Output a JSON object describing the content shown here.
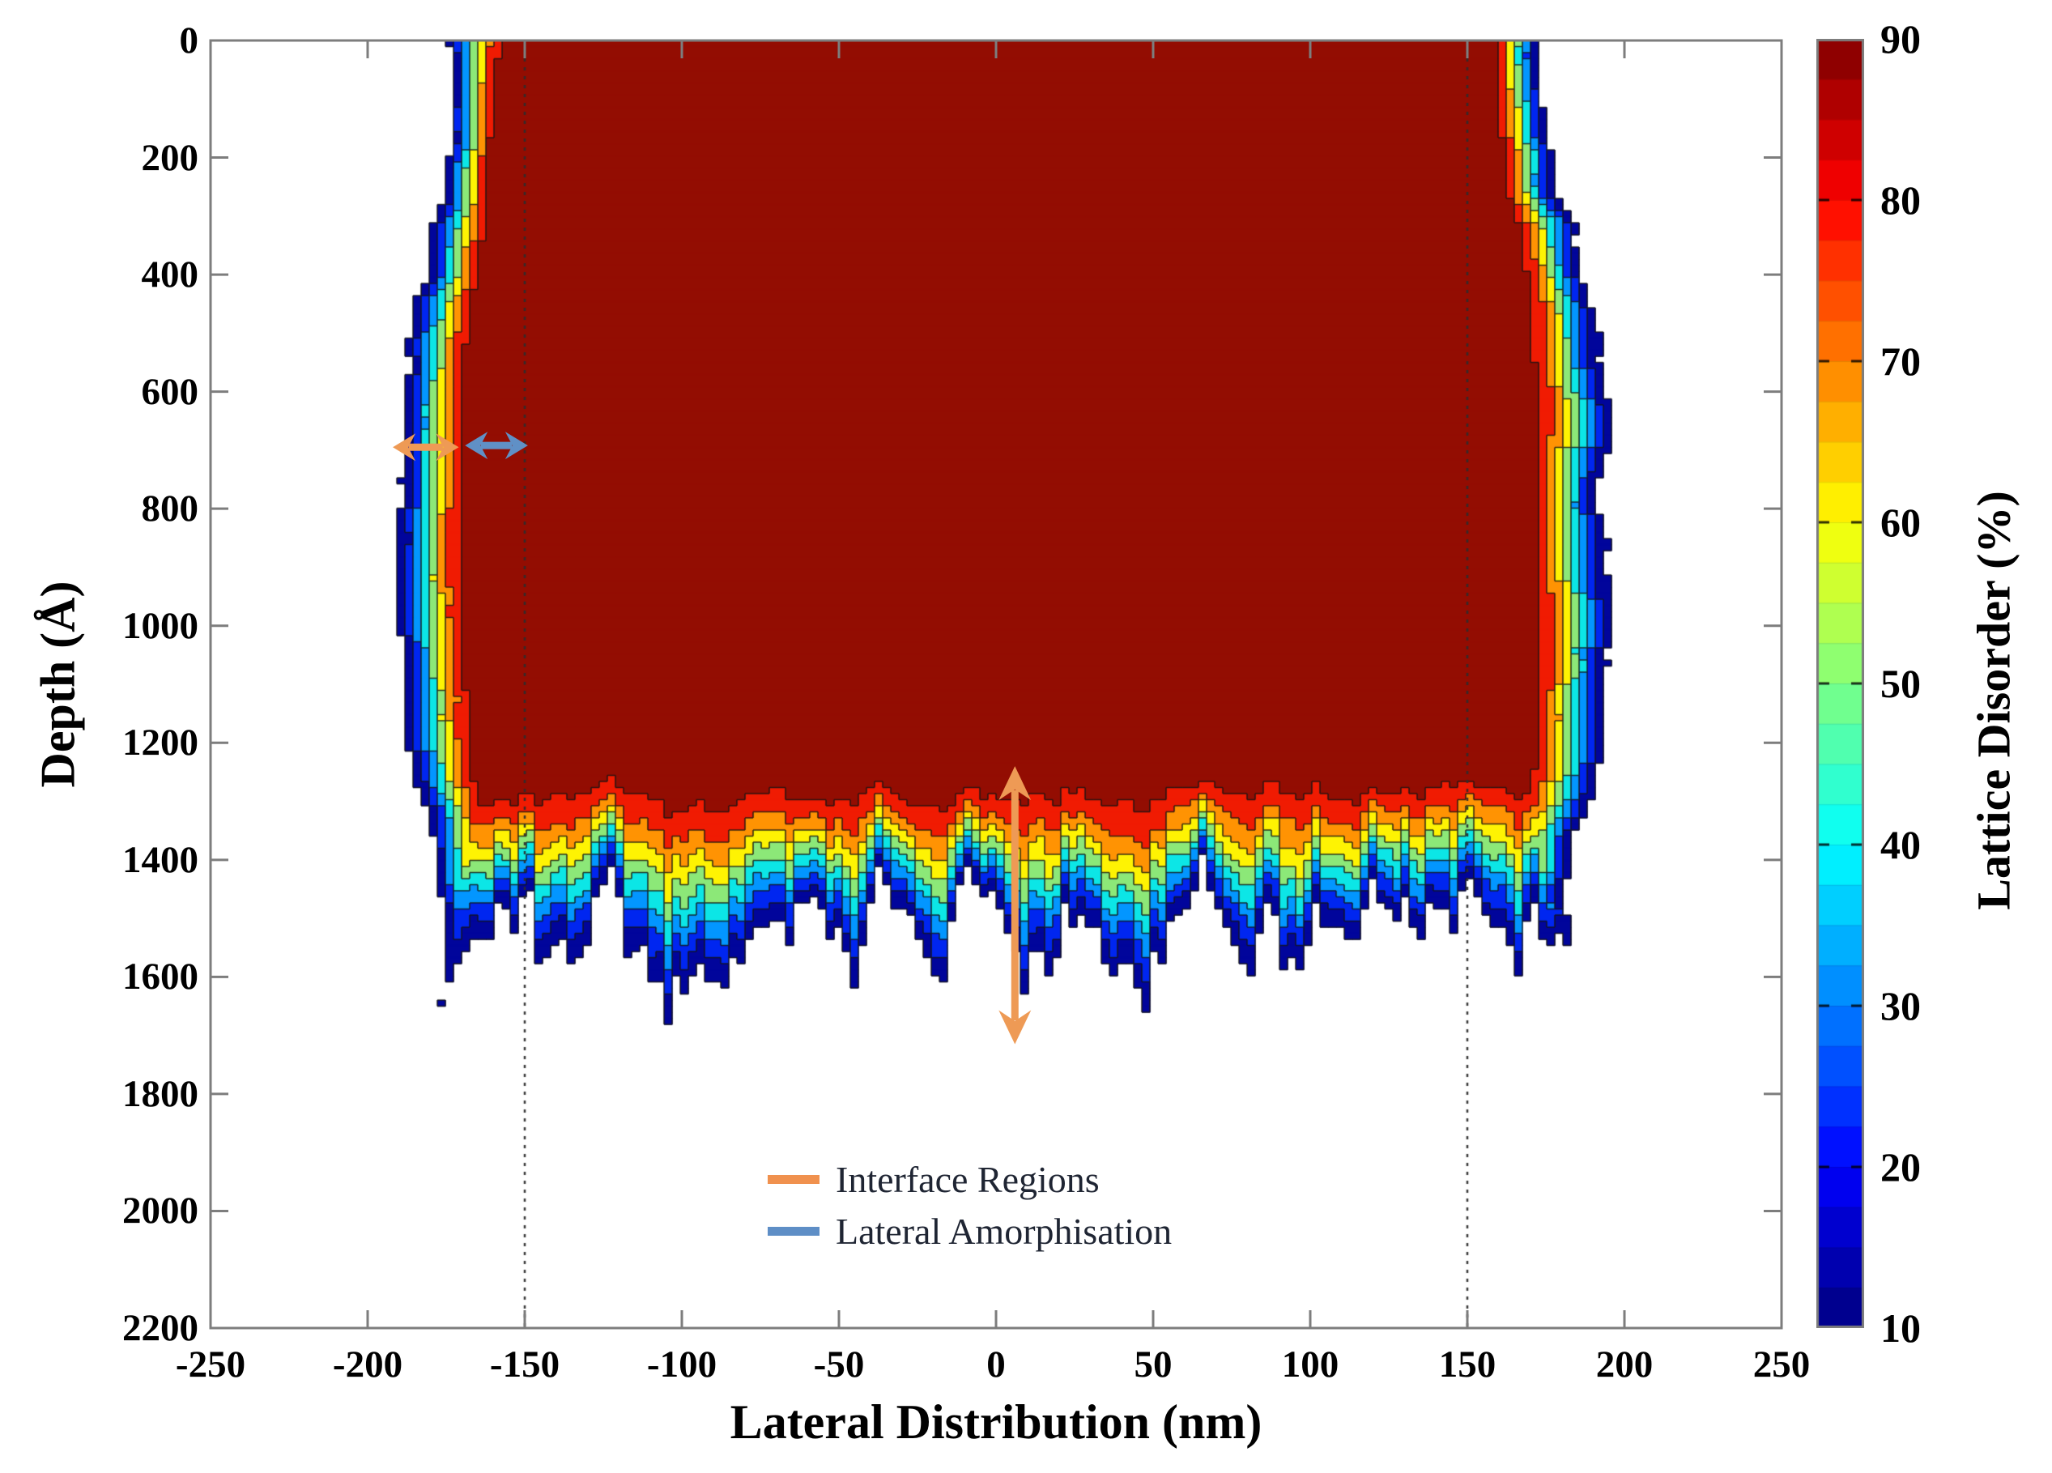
{
  "chart_data": {
    "type": "contour",
    "title": "",
    "xlabel": "Lateral Distribution (nm)",
    "ylabel": "Depth (Å)",
    "colorbar_label": "Lattice Disorder (%)",
    "xlim": [
      -250,
      250
    ],
    "ylim": [
      0,
      2200
    ],
    "y_inverted": true,
    "zlim": [
      10,
      90
    ],
    "x_ticks": [
      -250,
      -200,
      -150,
      -100,
      -50,
      0,
      50,
      100,
      150,
      200,
      250
    ],
    "y_ticks": [
      0,
      200,
      400,
      600,
      800,
      1000,
      1200,
      1400,
      1600,
      1800,
      2000,
      2200
    ],
    "colorbar_ticks": [
      10,
      20,
      30,
      40,
      50,
      60,
      70,
      80,
      90
    ],
    "colormap": "jet",
    "colorbar_segments": 32,
    "contour_levels": [
      10,
      20,
      30,
      40,
      50,
      60,
      70,
      80,
      90
    ],
    "band_fill_colors": [
      "#01059B",
      "#0026F0",
      "#0396FF",
      "#0CE6E6",
      "#8CE878",
      "#FEF303",
      "#FF9303",
      "#F01B02",
      "#930D02"
    ],
    "contour_line_color": "#141414",
    "background": "#ffffff",
    "grid": false,
    "reference_lines_x_nm": [
      -150,
      150
    ],
    "regions": {
      "description": "Amorphous core (>=90% lattice disorder, dark red) spans roughly -160..+160 nm laterally from the surface (0 Å) down to ~1250 Å. A rainbow transition fringe (80->10%) about 25-35 nm wide borders the sides, bulging to ±195-205 nm at mid depth. The bottom fringe is ragged, with low-disorder fingers reaching ~1550-1880 Å. Vertical dotted reference lines mark ±150 nm.",
      "core_lateral_top_nm": [
        -156,
        157
      ],
      "core_lateral_mid_nm": [
        -167,
        169
      ],
      "core_bottom_depth_A": 1245,
      "core_bottom_wiggle_A": 60,
      "outer_lateral_top_nm": [
        -175,
        179
      ],
      "outer_lateral_mid_nm": [
        -196,
        201
      ],
      "outer_bottom_depth_range_A": [
        1520,
        1880
      ]
    },
    "annotations": {
      "arrows": [
        {
          "id": "interface-depth-arrow",
          "orientation": "vertical",
          "color": "#EE9A55",
          "x_nm": 6,
          "depth_from_A": 1240,
          "depth_to_A": 1715
        },
        {
          "id": "interface-lateral-arrow",
          "orientation": "horizontal",
          "color": "#EE9A55",
          "depth_A": 695,
          "x_from_nm": -192,
          "x_to_nm": -171
        },
        {
          "id": "lateral-amorphisation-arrow",
          "orientation": "horizontal",
          "color": "#6090C6",
          "depth_A": 692,
          "x_from_nm": -169,
          "x_to_nm": -149
        }
      ]
    },
    "legend": {
      "items": [
        {
          "label": "Interface Regions",
          "color": "#F0914E"
        },
        {
          "label": "Lateral Amorphisation",
          "color": "#5E8EC6"
        }
      ]
    }
  }
}
